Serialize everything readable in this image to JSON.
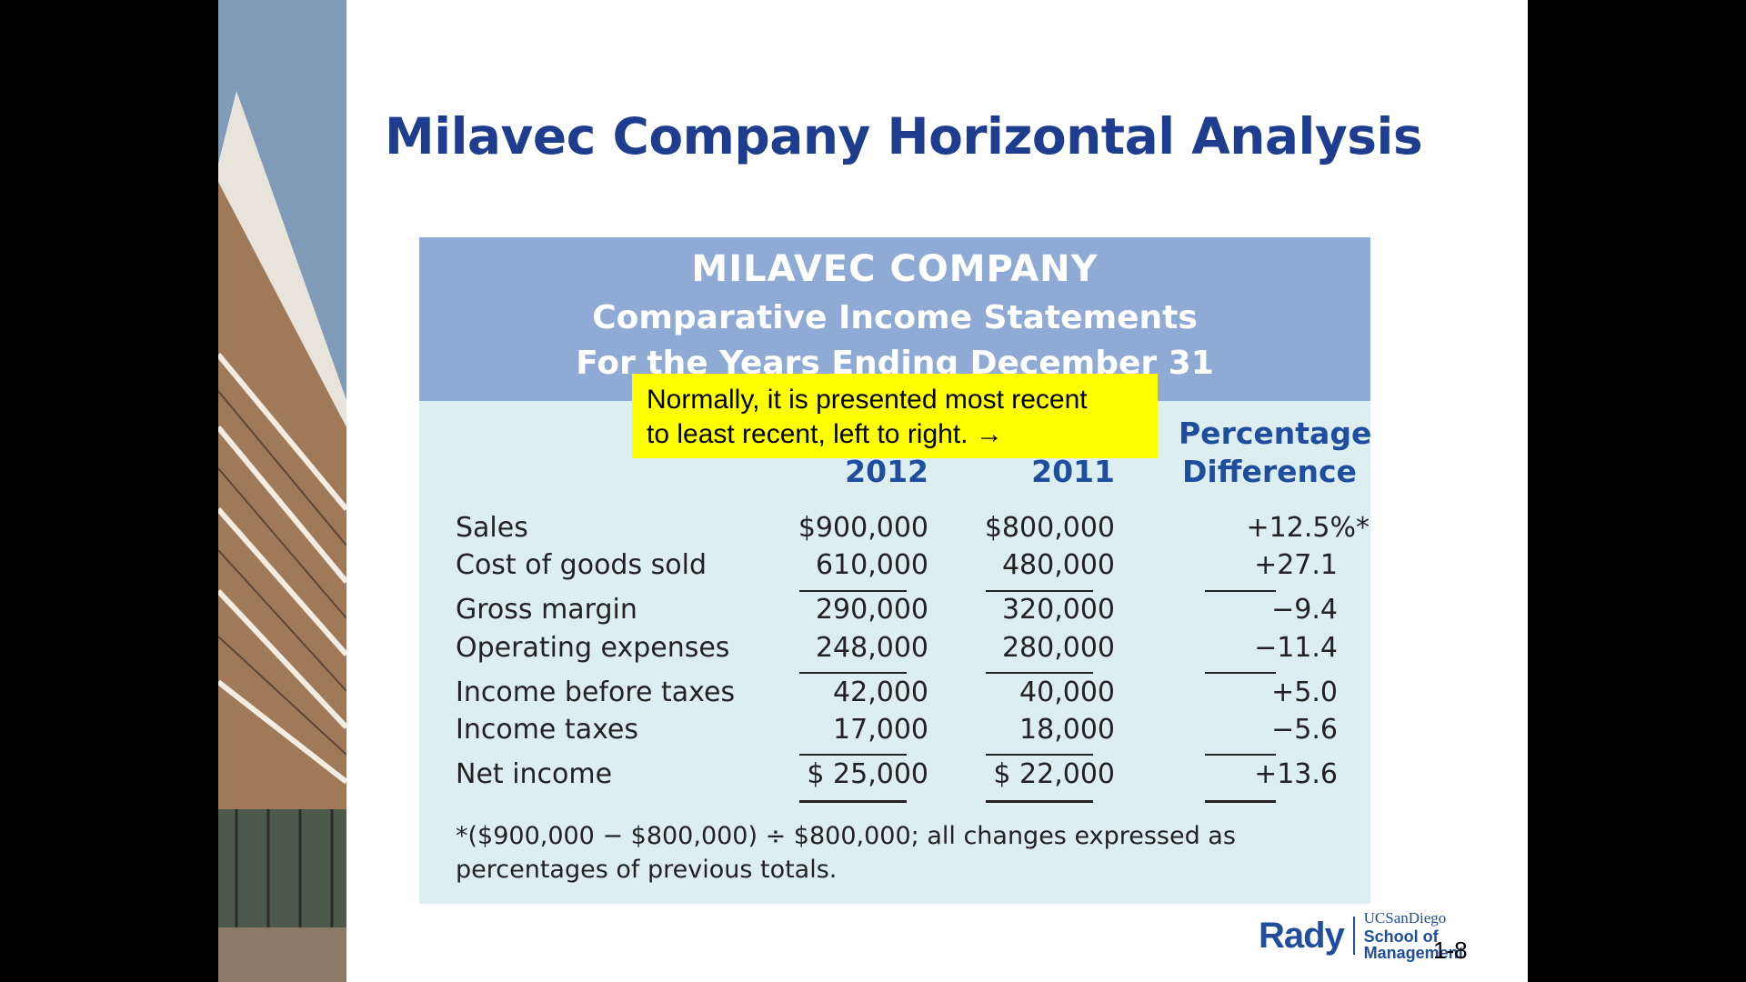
{
  "slide": {
    "title": "Milavec Company Horizontal Analysis",
    "page_number": "1-8"
  },
  "statement": {
    "company": "MILAVEC COMPANY",
    "subtitle": "Comparative Income Statements",
    "period": "For the Years Ending December 31",
    "columns": {
      "year1": "2012",
      "year2": "2011",
      "pct_line1": "Percentage",
      "pct_line2": "Difference"
    },
    "rows": [
      {
        "label": "Sales",
        "y2012": "$900,000",
        "y2011": "$800,000",
        "pct": "+12.5%*"
      },
      {
        "label": "Cost of goods sold",
        "y2012": "610,000",
        "y2011": "480,000",
        "pct": "+27.1"
      },
      {
        "label": "Gross margin",
        "y2012": "290,000",
        "y2011": "320,000",
        "pct": "−9.4"
      },
      {
        "label": "Operating expenses",
        "y2012": "248,000",
        "y2011": "280,000",
        "pct": "−11.4"
      },
      {
        "label": "Income before taxes",
        "y2012": "42,000",
        "y2011": "40,000",
        "pct": "+5.0"
      },
      {
        "label": "Income taxes",
        "y2012": "17,000",
        "y2011": "18,000",
        "pct": "−5.6"
      },
      {
        "label": "Net income",
        "y2012": "$ 25,000",
        "y2011": "$ 22,000",
        "pct": "+13.6"
      }
    ],
    "footnote": "*($900,000 − $800,000) ÷ $800,000; all changes expressed as percentages of previous totals."
  },
  "callout": {
    "line1": "Normally, it is presented most recent",
    "line2": "to least recent, left to right. →"
  },
  "logo": {
    "rady": "Rady",
    "ucsd": "UCSanDiego",
    "school": "School of Management"
  },
  "colors": {
    "title": "#1f3d8f",
    "header_band": "#8faad4",
    "panel_bg": "#ddeef1",
    "column_heading": "#1f4e9e",
    "callout": "#ffff00"
  }
}
